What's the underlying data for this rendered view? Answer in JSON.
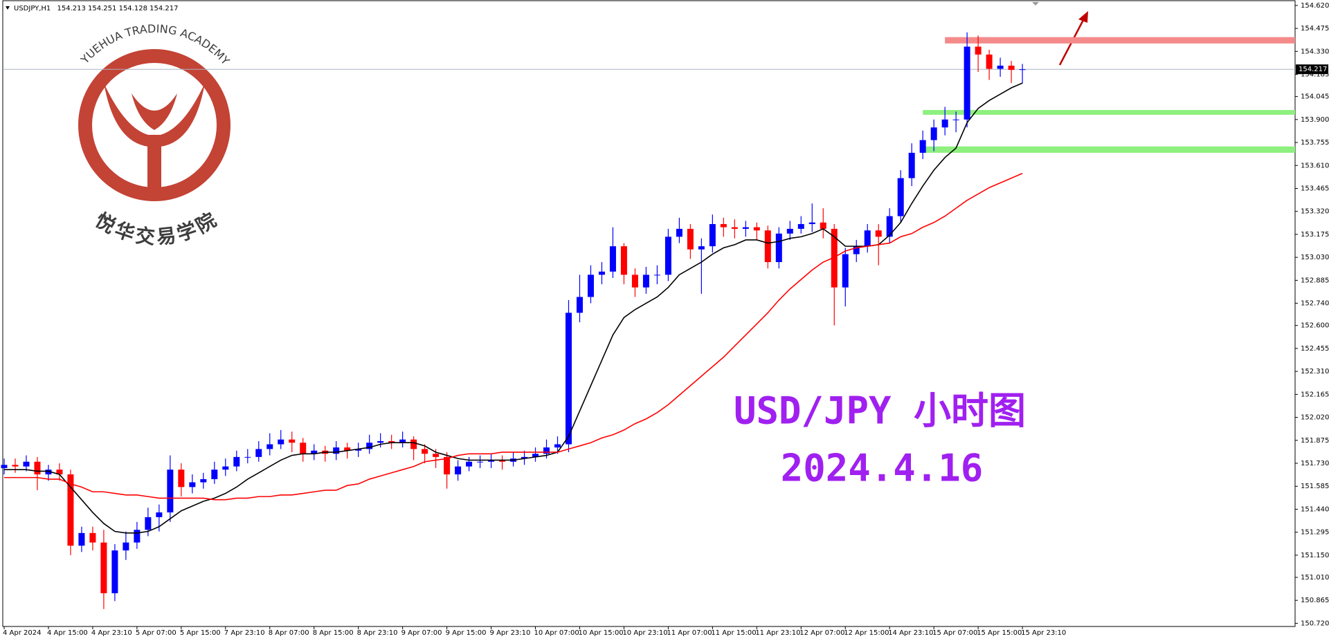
{
  "chart_data": {
    "type": "candlestick",
    "title": "USD/JPY 小时图",
    "subtitle": "2024.4.16",
    "watermark": "YUEHUA TRADING ACADEMY",
    "watermark_cn": "悦华交易学院",
    "header_symbol": "USDJPY,H1",
    "header_ohlc": [
      154.213,
      154.251,
      154.128,
      154.217
    ],
    "current_price": 154.217,
    "up_color": "#0000ff",
    "down_color": "#ff0000",
    "ylim": [
      150.7,
      154.65
    ],
    "yticks": [
      {
        "value": 154.62,
        "label": "154.620"
      },
      154.475,
      {
        "value": 154.33,
        "label": "154.330"
      },
      154.185,
      154.045,
      {
        "value": 153.9,
        "label": "153.900"
      },
      153.755,
      {
        "value": 153.61,
        "label": "153.610"
      },
      153.465,
      {
        "value": 153.32,
        "label": "153.320"
      },
      153.175,
      {
        "value": 153.03,
        "label": "153.030"
      },
      152.885,
      {
        "value": 152.74,
        "label": "152.740"
      },
      {
        "value": 152.6,
        "label": "152.600"
      },
      152.455,
      {
        "value": 152.31,
        "label": "152.310"
      },
      152.165,
      {
        "value": 152.02,
        "label": "152.020"
      },
      151.875,
      {
        "value": 151.73,
        "label": "151.730"
      },
      151.585,
      {
        "value": 151.44,
        "label": "151.440"
      },
      151.295,
      {
        "value": 151.15,
        "label": "151.150"
      },
      {
        "value": 151.01,
        "label": "151.010"
      },
      150.865,
      {
        "value": 150.72,
        "label": "150.720"
      }
    ],
    "categories": [
      "4 Apr 2024",
      null,
      null,
      null,
      "4 Apr 15:00",
      null,
      null,
      null,
      "4 Apr 23:10",
      null,
      null,
      null,
      "5 Apr 07:00",
      null,
      null,
      null,
      "5 Apr 15:00",
      null,
      null,
      null,
      "7 Apr 23:10",
      null,
      null,
      null,
      "8 Apr 07:00",
      null,
      null,
      null,
      "8 Apr 15:00",
      null,
      null,
      null,
      "8 Apr 23:10",
      null,
      null,
      null,
      "9 Apr 07:00",
      null,
      null,
      null,
      "9 Apr 15:00",
      null,
      null,
      null,
      "9 Apr 23:10",
      null,
      null,
      null,
      "10 Apr 07:00",
      null,
      null,
      null,
      "10 Apr 15:00",
      null,
      null,
      null,
      "10 Apr 23:10",
      null,
      null,
      null,
      "11 Apr 07:00",
      null,
      null,
      null,
      "11 Apr 15:00",
      null,
      null,
      null,
      "11 Apr 23:10",
      null,
      null,
      null,
      "12 Apr 07:00",
      null,
      null,
      null,
      "12 Apr 15:00",
      null,
      null,
      null,
      "14 Apr 23:10",
      null,
      null,
      null,
      "15 Apr 07:00",
      null,
      null,
      null,
      "15 Apr 15:00",
      null,
      null,
      null,
      "15 Apr 23:10"
    ],
    "open": [
      151.7,
      151.72,
      151.71,
      151.74,
      151.66,
      151.69,
      151.66,
      151.21,
      151.29,
      151.23,
      150.91,
      151.18,
      151.23,
      151.31,
      151.39,
      151.42,
      151.69,
      151.58,
      151.61,
      151.63,
      151.69,
      151.71,
      151.77,
      151.77,
      151.82,
      151.85,
      151.88,
      151.86,
      151.79,
      151.81,
      151.79,
      151.83,
      151.81,
      151.82,
      151.86,
      151.87,
      151.86,
      151.88,
      151.82,
      151.79,
      151.77,
      151.66,
      151.71,
      151.74,
      151.74,
      151.75,
      151.74,
      151.76,
      151.77,
      151.79,
      151.83,
      151.85,
      152.68,
      152.78,
      152.92,
      152.94,
      153.1,
      152.92,
      152.84,
      152.92,
      152.92,
      153.16,
      153.21,
      153.08,
      153.1,
      153.24,
      153.22,
      153.21,
      153.22,
      153.2,
      153.0,
      153.18,
      153.21,
      153.24,
      153.25,
      153.21,
      152.84,
      153.05,
      153.1,
      153.2,
      153.16,
      153.29,
      153.53,
      153.69,
      153.77,
      153.85,
      153.9,
      153.9,
      154.36,
      154.31,
      154.22,
      154.24,
      154.213
    ],
    "high": [
      151.76,
      151.76,
      151.78,
      151.77,
      151.72,
      151.73,
      151.69,
      151.33,
      151.33,
      151.31,
      151.22,
      151.3,
      151.36,
      151.45,
      151.47,
      151.78,
      151.73,
      151.66,
      151.67,
      151.74,
      151.76,
      151.81,
      151.82,
      151.87,
      151.92,
      151.94,
      151.93,
      151.89,
      151.85,
      151.84,
      151.87,
      151.86,
      151.86,
      151.91,
      151.92,
      151.91,
      151.93,
      151.9,
      151.85,
      151.82,
      151.8,
      151.75,
      151.77,
      151.78,
      151.79,
      151.78,
      151.8,
      151.81,
      151.83,
      151.88,
      151.9,
      152.76,
      152.92,
      152.98,
      153.0,
      153.22,
      153.12,
      152.96,
      152.97,
      152.98,
      153.21,
      153.28,
      153.24,
      153.15,
      153.3,
      153.28,
      153.27,
      153.26,
      153.25,
      153.23,
      153.22,
      153.26,
      153.29,
      153.37,
      153.34,
      153.24,
      153.09,
      153.14,
      153.24,
      153.24,
      153.34,
      153.58,
      153.75,
      153.83,
      153.9,
      153.98,
      153.95,
      154.45,
      154.43,
      154.34,
      154.29,
      154.27,
      154.251
    ],
    "low": [
      151.66,
      151.67,
      151.68,
      151.56,
      151.62,
      151.62,
      151.15,
      151.17,
      151.18,
      150.81,
      150.86,
      151.12,
      151.19,
      151.27,
      151.3,
      151.36,
      151.52,
      151.54,
      151.57,
      151.6,
      151.65,
      151.68,
      151.73,
      151.74,
      151.78,
      151.82,
      151.8,
      151.74,
      151.75,
      151.74,
      151.75,
      151.76,
      151.77,
      151.79,
      151.83,
      151.82,
      151.83,
      151.75,
      151.73,
      151.7,
      151.57,
      151.62,
      151.68,
      151.7,
      151.7,
      151.69,
      151.71,
      151.72,
      151.74,
      151.76,
      151.79,
      151.8,
      152.62,
      152.74,
      152.86,
      152.9,
      152.86,
      152.78,
      152.8,
      152.86,
      152.88,
      153.12,
      153.02,
      152.8,
      153.06,
      153.16,
      153.15,
      153.16,
      153.14,
      152.96,
      152.96,
      153.14,
      153.18,
      153.19,
      153.15,
      152.6,
      152.72,
      153.0,
      153.06,
      152.98,
      153.12,
      153.25,
      153.48,
      153.65,
      153.7,
      153.8,
      153.82,
      153.85,
      154.2,
      154.15,
      154.17,
      154.13,
      154.128
    ],
    "close": [
      151.72,
      151.71,
      151.74,
      151.66,
      151.69,
      151.66,
      151.21,
      151.29,
      151.23,
      150.91,
      151.18,
      151.23,
      151.31,
      151.39,
      151.42,
      151.69,
      151.58,
      151.61,
      151.63,
      151.69,
      151.71,
      151.77,
      151.77,
      151.82,
      151.85,
      151.88,
      151.86,
      151.79,
      151.81,
      151.79,
      151.83,
      151.81,
      151.82,
      151.86,
      151.87,
      151.86,
      151.88,
      151.82,
      151.79,
      151.77,
      151.66,
      151.71,
      151.74,
      151.74,
      151.75,
      151.74,
      151.76,
      151.77,
      151.79,
      151.83,
      151.85,
      152.68,
      152.78,
      152.92,
      152.94,
      153.1,
      152.92,
      152.84,
      152.92,
      152.92,
      153.16,
      153.21,
      153.08,
      153.1,
      153.24,
      153.22,
      153.21,
      153.22,
      153.2,
      153.0,
      153.18,
      153.21,
      153.24,
      153.25,
      153.21,
      152.84,
      153.05,
      153.1,
      153.2,
      153.16,
      153.29,
      153.53,
      153.69,
      153.77,
      153.85,
      153.9,
      153.9,
      154.36,
      154.31,
      154.22,
      154.24,
      154.213,
      154.217
    ],
    "lines": [
      {
        "color": "#000000",
        "values": [
          151.69,
          151.69,
          151.69,
          151.68,
          151.68,
          151.66,
          151.58,
          151.5,
          151.42,
          151.35,
          151.3,
          151.29,
          151.29,
          151.3,
          151.33,
          151.38,
          151.43,
          151.46,
          151.49,
          151.51,
          151.54,
          151.58,
          151.63,
          151.67,
          151.71,
          151.75,
          151.78,
          151.79,
          151.79,
          151.8,
          151.8,
          151.81,
          151.82,
          151.83,
          151.85,
          151.86,
          151.86,
          151.86,
          151.84,
          151.8,
          151.78,
          151.76,
          151.75,
          151.75,
          151.75,
          151.75,
          151.75,
          151.76,
          151.77,
          151.78,
          151.8,
          151.9,
          152.06,
          152.22,
          152.38,
          152.54,
          152.65,
          152.7,
          152.74,
          152.78,
          152.84,
          152.92,
          152.96,
          153.0,
          153.05,
          153.09,
          153.11,
          153.14,
          153.14,
          153.12,
          153.13,
          153.15,
          153.16,
          153.18,
          153.21,
          153.16,
          153.1,
          153.1,
          153.1,
          153.11,
          153.17,
          153.25,
          153.37,
          153.48,
          153.58,
          153.66,
          153.72,
          153.88,
          153.97,
          154.02,
          154.06,
          154.1,
          154.13
        ]
      },
      {
        "color": "#ff0000",
        "values": [
          151.64,
          151.64,
          151.64,
          151.64,
          151.63,
          151.63,
          151.6,
          151.58,
          151.55,
          151.55,
          151.54,
          151.53,
          151.53,
          151.52,
          151.51,
          151.51,
          151.51,
          151.51,
          151.51,
          151.5,
          151.5,
          151.51,
          151.51,
          151.52,
          151.52,
          151.53,
          151.53,
          151.54,
          151.55,
          151.56,
          151.56,
          151.59,
          151.6,
          151.63,
          151.65,
          151.67,
          151.69,
          151.71,
          151.74,
          151.75,
          151.76,
          151.78,
          151.79,
          151.79,
          151.79,
          151.8,
          151.8,
          151.8,
          151.8,
          151.8,
          151.8,
          151.82,
          151.84,
          151.86,
          151.89,
          151.91,
          151.94,
          151.98,
          152.01,
          152.05,
          152.1,
          152.16,
          152.22,
          152.28,
          152.34,
          152.4,
          152.47,
          152.54,
          152.61,
          152.68,
          152.76,
          152.83,
          152.89,
          152.95,
          153.0,
          153.03,
          153.07,
          153.09,
          153.1,
          153.11,
          153.12,
          153.16,
          153.18,
          153.22,
          153.25,
          153.29,
          153.34,
          153.39,
          153.43,
          153.47,
          153.5,
          153.53,
          153.56
        ]
      }
    ],
    "zones": [
      {
        "low": 154.38,
        "high": 154.42,
        "color": "#f48a8a",
        "start": 85
      },
      {
        "low": 153.93,
        "high": 153.96,
        "color": "#8ef07e",
        "start": 83
      },
      {
        "low": 153.69,
        "high": 153.73,
        "color": "#8ef07e",
        "start": 83
      }
    ]
  }
}
